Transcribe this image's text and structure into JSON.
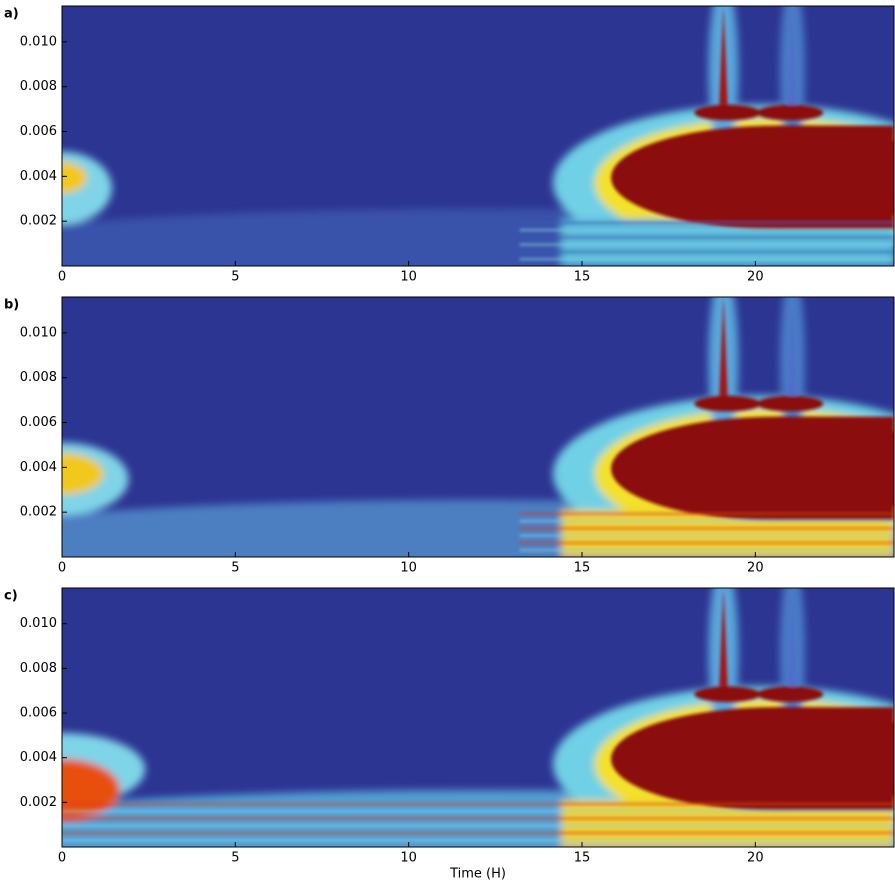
{
  "chart_data": [
    {
      "type": "heatmap",
      "label": "a)",
      "xlim": [
        0,
        24
      ],
      "ylim": [
        0,
        0.0116
      ],
      "xticks": [
        0,
        5,
        10,
        15,
        20
      ],
      "yticks": [
        0.002,
        0.004,
        0.006,
        0.008,
        {
          "value": 0.01,
          "label": "0.010"
        }
      ]
    },
    {
      "type": "heatmap",
      "label": "b)",
      "xlim": [
        0,
        24
      ],
      "ylim": [
        0,
        0.0116
      ],
      "xticks": [
        0,
        5,
        10,
        15,
        20
      ],
      "yticks": [
        0.002,
        0.004,
        0.006,
        0.008,
        {
          "value": 0.01,
          "label": "0.010"
        }
      ]
    },
    {
      "type": "heatmap",
      "label": "c)",
      "xlim": [
        0,
        24
      ],
      "ylim": [
        0,
        0.0116
      ],
      "xticks": [
        0,
        5,
        10,
        15,
        20
      ],
      "yticks": [
        0.002,
        0.004,
        0.006,
        0.008,
        {
          "value": 0.01,
          "label": "0.010"
        }
      ],
      "xlabel": "Time (H)"
    }
  ]
}
